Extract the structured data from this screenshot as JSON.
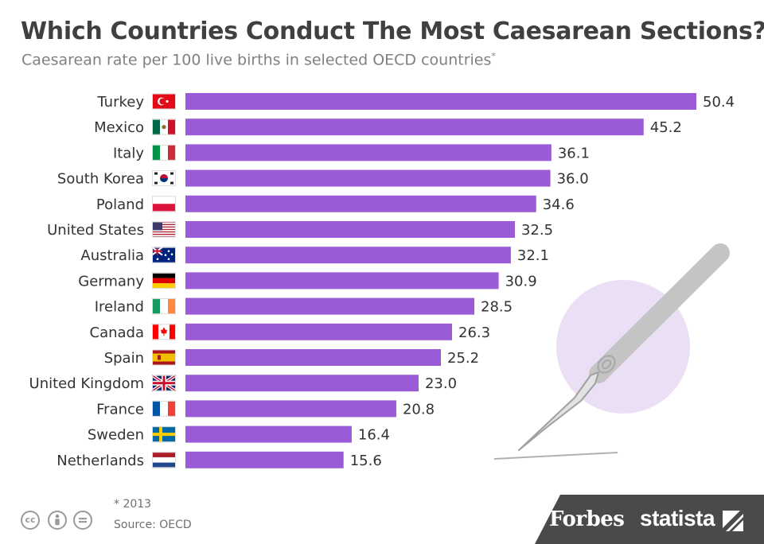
{
  "header": {
    "title": "Which Countries Conduct The Most Caesarean Sections?",
    "subtitle": "Caesarean rate per 100 live births in selected OECD countries",
    "subtitle_mark": "*"
  },
  "footer": {
    "note": "* 2013",
    "source": "Source: OECD",
    "brands": [
      "Forbes",
      "statista"
    ],
    "license_icons": [
      "cc-icon",
      "attribution-icon",
      "no-derivatives-icon"
    ]
  },
  "colors": {
    "bar": "#9b5bd6",
    "accent_circle": "#eadff5",
    "footer": "#4a4a4a"
  },
  "chart_data": {
    "type": "bar",
    "orientation": "horizontal",
    "title": "Which Countries Conduct The Most Caesarean Sections?",
    "subtitle": "Caesarean rate per 100 live births in selected OECD countries*",
    "categories": [
      "Turkey",
      "Mexico",
      "Italy",
      "South Korea",
      "Poland",
      "United States",
      "Australia",
      "Germany",
      "Ireland",
      "Canada",
      "Spain",
      "United Kingdom",
      "France",
      "Sweden",
      "Netherlands"
    ],
    "values": [
      50.4,
      45.2,
      36.1,
      36.0,
      34.6,
      32.5,
      32.1,
      30.9,
      28.5,
      26.3,
      25.2,
      23.0,
      20.8,
      16.4,
      15.6
    ],
    "value_labels": [
      "50.4",
      "45.2",
      "36.1",
      "36.0",
      "34.6",
      "32.5",
      "32.1",
      "30.9",
      "28.5",
      "26.3",
      "25.2",
      "23.0",
      "20.8",
      "16.4",
      "15.6"
    ],
    "flags": [
      "turkey-flag-icon",
      "mexico-flag-icon",
      "italy-flag-icon",
      "south-korea-flag-icon",
      "poland-flag-icon",
      "united-states-flag-icon",
      "australia-flag-icon",
      "germany-flag-icon",
      "ireland-flag-icon",
      "canada-flag-icon",
      "spain-flag-icon",
      "united-kingdom-flag-icon",
      "france-flag-icon",
      "sweden-flag-icon",
      "netherlands-flag-icon"
    ],
    "xlabel": "",
    "ylabel": "",
    "xlim": [
      0,
      50.4
    ],
    "grid": false,
    "legend": "none"
  }
}
